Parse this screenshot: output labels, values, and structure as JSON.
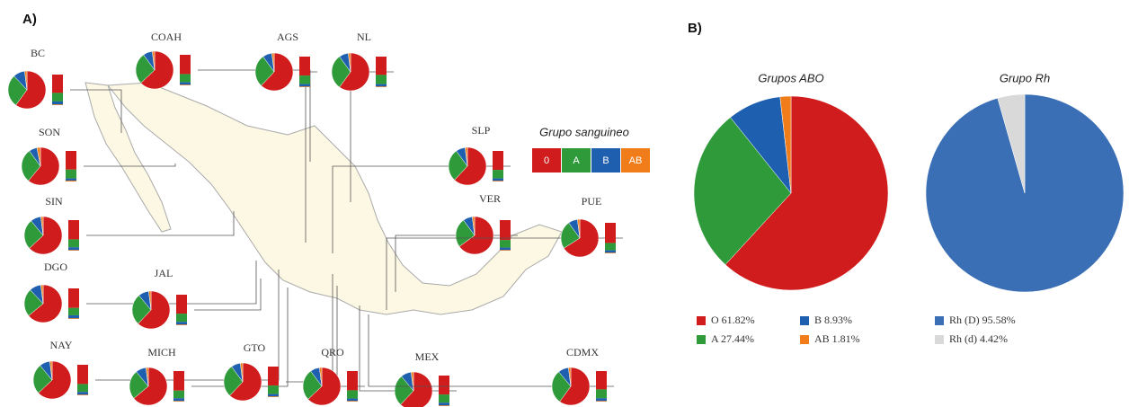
{
  "chart_data": [
    {
      "type": "pie-map",
      "label": "A)",
      "legend_title": "Grupo sanguineo",
      "legend": [
        "0",
        "A",
        "B",
        "AB"
      ],
      "colors": [
        "#d01c1c",
        "#2e9a3a",
        "#1f5fb0",
        "#f07d1a"
      ],
      "regions": [
        {
          "name": "BC",
          "values": [
            60,
            28,
            10,
            2
          ]
        },
        {
          "name": "COAH",
          "values": [
            63,
            27,
            8,
            2
          ]
        },
        {
          "name": "AGS",
          "values": [
            62,
            28,
            8,
            2
          ]
        },
        {
          "name": "NL",
          "values": [
            60,
            30,
            8,
            2
          ]
        },
        {
          "name": "SON",
          "values": [
            61,
            29,
            7,
            3
          ]
        },
        {
          "name": "SIN",
          "values": [
            63,
            26,
            9,
            2
          ]
        },
        {
          "name": "DGO",
          "values": [
            64,
            24,
            10,
            2
          ]
        },
        {
          "name": "JAL",
          "values": [
            62,
            27,
            9,
            2
          ]
        },
        {
          "name": "NAY",
          "values": [
            63,
            26,
            9,
            2
          ]
        },
        {
          "name": "MICH",
          "values": [
            64,
            25,
            9,
            2
          ]
        },
        {
          "name": "GTO",
          "values": [
            62,
            28,
            8,
            2
          ]
        },
        {
          "name": "QRO",
          "values": [
            63,
            27,
            8,
            2
          ]
        },
        {
          "name": "MEX",
          "values": [
            62,
            27,
            9,
            2
          ]
        },
        {
          "name": "CDMX",
          "values": [
            60,
            29,
            9,
            2
          ]
        },
        {
          "name": "SLP",
          "values": [
            62,
            28,
            8,
            2
          ]
        },
        {
          "name": "VER",
          "values": [
            65,
            25,
            8,
            2
          ]
        },
        {
          "name": "PUE",
          "values": [
            66,
            24,
            8,
            2
          ]
        }
      ]
    },
    {
      "type": "pie",
      "label": "B)",
      "title": "Grupos ABO",
      "categories": [
        "O",
        "A",
        "B",
        "AB"
      ],
      "values": [
        61.82,
        27.44,
        8.93,
        1.81
      ],
      "value_labels": [
        "61.82%",
        "27.44%",
        "8.93%",
        "1.81%"
      ],
      "colors": [
        "#d01c1c",
        "#2e9a3a",
        "#1f5fb0",
        "#f07d1a"
      ]
    },
    {
      "type": "pie",
      "title": "Grupo Rh",
      "categories": [
        "Rh (D)",
        "Rh (d)"
      ],
      "values": [
        95.58,
        4.42
      ],
      "value_labels": [
        "95.58%",
        "4.42%"
      ],
      "colors": [
        "#3a6fb5",
        "#d9d9d9"
      ]
    }
  ]
}
